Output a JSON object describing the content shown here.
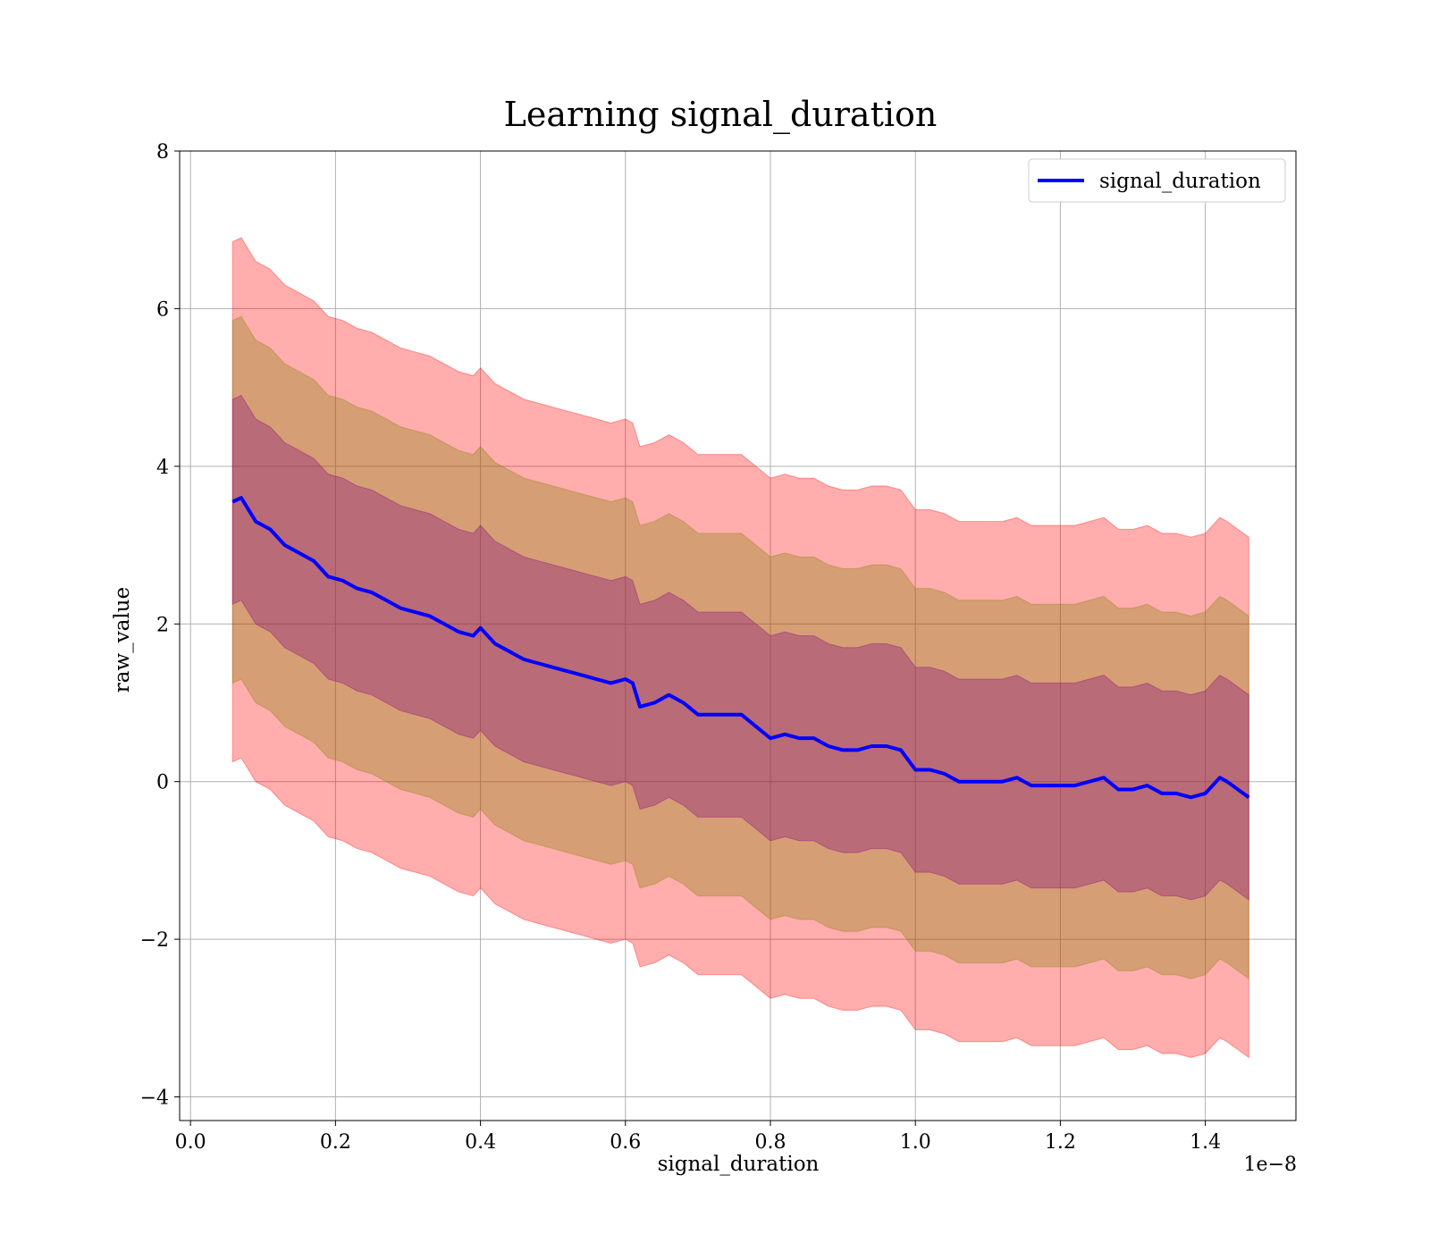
{
  "chart_data": {
    "type": "line",
    "title": "Learning signal_duration",
    "xlabel": "signal_duration",
    "ylabel": "raw_value",
    "x_offset_text": "1e−8",
    "xlim": [
      -0.015,
      1.525
    ],
    "ylim": [
      -4.3,
      8.0
    ],
    "x_ticks": [
      0.0,
      0.2,
      0.4,
      0.6,
      0.8,
      1.0,
      1.2,
      1.4
    ],
    "x_tick_labels": [
      "0.0",
      "0.2",
      "0.4",
      "0.6",
      "0.8",
      "1.0",
      "1.2",
      "1.4"
    ],
    "y_ticks": [
      -4,
      -2,
      0,
      2,
      4,
      6,
      8
    ],
    "y_tick_labels": [
      "−4",
      "−2",
      "0",
      "2",
      "4",
      "6",
      "8"
    ],
    "grid": true,
    "legend": {
      "position": "top-right",
      "entries": [
        "signal_duration"
      ]
    },
    "colors": {
      "line": "#0000ff",
      "band_outer": "#ff0000",
      "band_middle": "#808000",
      "band_inner": "#800080"
    },
    "band_std_offsets": [
      1.3,
      2.3,
      3.3
    ],
    "band_opacity": 0.32,
    "series": [
      {
        "name": "signal_duration",
        "x": [
          0.058,
          0.07,
          0.09,
          0.11,
          0.13,
          0.15,
          0.17,
          0.19,
          0.21,
          0.23,
          0.25,
          0.27,
          0.29,
          0.31,
          0.33,
          0.35,
          0.37,
          0.39,
          0.4,
          0.42,
          0.44,
          0.46,
          0.48,
          0.5,
          0.52,
          0.54,
          0.56,
          0.58,
          0.6,
          0.61,
          0.62,
          0.64,
          0.66,
          0.68,
          0.7,
          0.72,
          0.74,
          0.76,
          0.78,
          0.8,
          0.82,
          0.84,
          0.86,
          0.88,
          0.9,
          0.92,
          0.94,
          0.96,
          0.98,
          1.0,
          1.02,
          1.04,
          1.06,
          1.08,
          1.1,
          1.12,
          1.14,
          1.16,
          1.18,
          1.2,
          1.22,
          1.24,
          1.26,
          1.28,
          1.3,
          1.32,
          1.34,
          1.36,
          1.38,
          1.4,
          1.42,
          1.43,
          1.46
        ],
        "y": [
          3.55,
          3.6,
          3.3,
          3.2,
          3.0,
          2.9,
          2.8,
          2.6,
          2.55,
          2.45,
          2.4,
          2.3,
          2.2,
          2.15,
          2.1,
          2.0,
          1.9,
          1.85,
          1.95,
          1.75,
          1.65,
          1.55,
          1.5,
          1.45,
          1.4,
          1.35,
          1.3,
          1.25,
          1.3,
          1.25,
          0.95,
          1.0,
          1.1,
          1.0,
          0.85,
          0.85,
          0.85,
          0.85,
          0.7,
          0.55,
          0.6,
          0.55,
          0.55,
          0.45,
          0.4,
          0.4,
          0.45,
          0.45,
          0.4,
          0.15,
          0.15,
          0.1,
          0.0,
          0.0,
          0.0,
          0.0,
          0.05,
          -0.05,
          -0.05,
          -0.05,
          -0.05,
          0.0,
          0.05,
          -0.1,
          -0.1,
          -0.05,
          -0.15,
          -0.15,
          -0.2,
          -0.15,
          0.05,
          0.0,
          -0.2
        ]
      }
    ]
  }
}
